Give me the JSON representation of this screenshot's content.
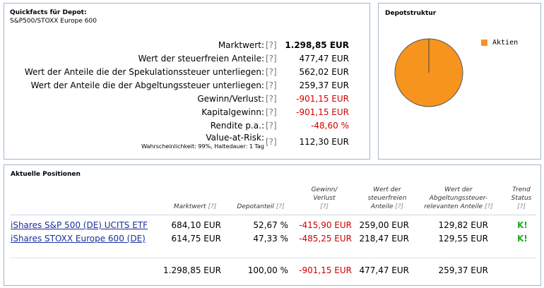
{
  "quickfacts": {
    "title": "Quickfacts für Depot:",
    "subtitle": "S&P500/STOXX Europe 600",
    "help": "[?]",
    "rows": [
      {
        "label": "Marktwert:",
        "value": "1.298,85 EUR"
      },
      {
        "label": "Wert der steuerfreien Anteile:",
        "value": "477,47 EUR"
      },
      {
        "label": "Wert der Anteile die der Spekulationssteuer unterliegen:",
        "value": "562,02 EUR"
      },
      {
        "label": "Wert der Anteile die der Abgeltungssteuer unterliegen:",
        "value": "259,37 EUR"
      },
      {
        "label": "Gewinn/Verlust:",
        "value": "-901,15 EUR"
      },
      {
        "label": "Kapitalgewinn:",
        "value": "-901,15 EUR"
      },
      {
        "label": "Rendite p.a.:",
        "value": "-48,60 %"
      },
      {
        "label": "Value-at-Risk:",
        "value": "112,30 EUR",
        "sub": "Wahrscheinlichkeit: 99%, Haltedauer: 1 Tag"
      }
    ]
  },
  "depotstruktur": {
    "title": "Depotstruktur",
    "legend": [
      {
        "label": "Aktien",
        "color": "#f7941d"
      }
    ]
  },
  "chart_data": {
    "type": "pie",
    "categories": [
      "Aktien"
    ],
    "values": [
      100
    ],
    "colors": [
      "#f7941d"
    ],
    "title": "",
    "legend_position": "right"
  },
  "positions": {
    "title": "Aktuelle Positionen",
    "help": "[?]",
    "headers": {
      "marktwert": "Marktwert",
      "depotanteil": "Depotanteil",
      "gewinn_1": "Gewinn/",
      "gewinn_2": "Verlust",
      "steuerfrei_1": "Wert der",
      "steuerfrei_2": "steuerfreien",
      "steuerfrei_3": "Anteile",
      "abgelt_1": "Wert der",
      "abgelt_2": "Abgeltungssteuer-",
      "abgelt_3": "relevanten Anteile",
      "trend_1": "Trend",
      "trend_2": "Status"
    },
    "rows": [
      {
        "name": "iShares S&P 500 (DE) UCITS ETF",
        "marktwert": "684,10 EUR",
        "depotanteil": "52,67 %",
        "gewinn": "-415,90 EUR",
        "steuerfrei": "259,00 EUR",
        "abgelt": "129,82 EUR",
        "trend": "K!"
      },
      {
        "name": "iShares STOXX Europe 600 (DE)",
        "marktwert": "614,75 EUR",
        "depotanteil": "47,33 %",
        "gewinn": "-485,25 EUR",
        "steuerfrei": "218,47 EUR",
        "abgelt": "129,55 EUR",
        "trend": "K!"
      }
    ],
    "totals": {
      "marktwert": "1.298,85 EUR",
      "depotanteil": "100,00 %",
      "gewinn": "-901,15 EUR",
      "steuerfrei": "477,47 EUR",
      "abgelt": "259,37 EUR"
    }
  }
}
